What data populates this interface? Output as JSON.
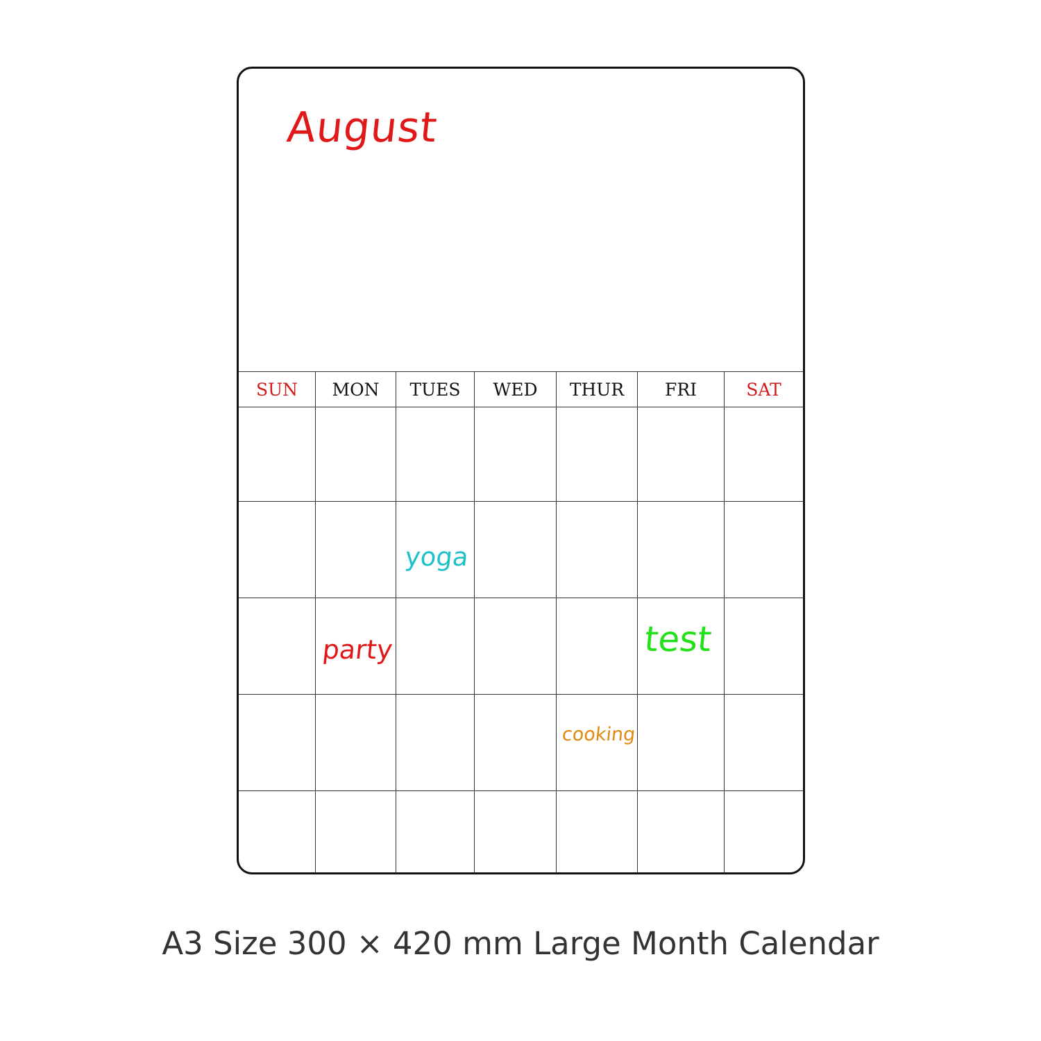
{
  "calendar": {
    "month": "August",
    "days": [
      {
        "label": "SUN",
        "color": "#d11a1a"
      },
      {
        "label": "MON",
        "color": "#111111"
      },
      {
        "label": "TUES",
        "color": "#111111"
      },
      {
        "label": "WED",
        "color": "#111111"
      },
      {
        "label": "THUR",
        "color": "#111111"
      },
      {
        "label": "FRI",
        "color": "#111111"
      },
      {
        "label": "SAT",
        "color": "#d11a1a"
      }
    ],
    "notes": {
      "yoga": "yoga",
      "party": "party",
      "test": "test",
      "cooking": "cooking"
    }
  },
  "colors": {
    "month": "#e01818",
    "yoga": "#1fc0c8",
    "party": "#e01818",
    "test": "#22e01a",
    "cooking": "#e08a12"
  },
  "caption": "A3 Size 300 × 420 mm Large Month Calendar"
}
